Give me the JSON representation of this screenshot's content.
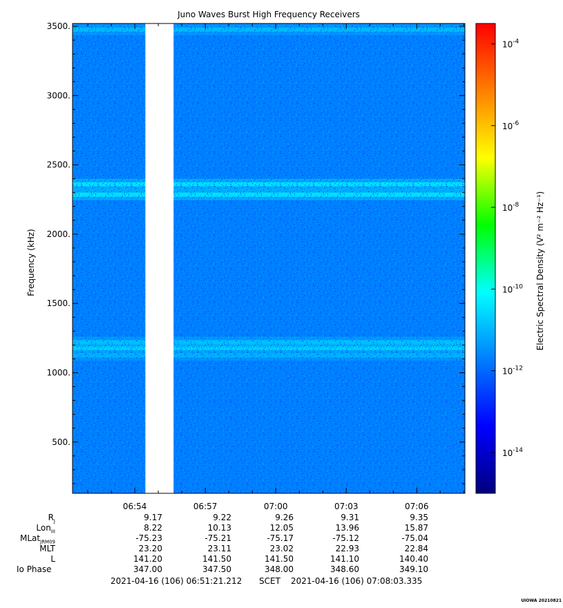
{
  "chart_data": {
    "type": "heatmap",
    "title": "Juno Waves Burst High Frequency Receivers",
    "ylabel": "Frequency (kHz)",
    "colorbar_label": "Electric Spectral Density (V² m⁻² Hz⁻¹)",
    "ylim": [
      130,
      3520
    ],
    "yticks": [
      500,
      1000,
      1500,
      2000,
      2500,
      3000,
      3500
    ],
    "ytick_labels": [
      "500.",
      "1000.",
      "1500.",
      "2000.",
      "2500.",
      "3000.",
      "3500."
    ],
    "xlim_minutes": [
      0,
      16.7
    ],
    "xtick_labels": [
      "06:54",
      "06:57",
      "07:00",
      "07:03",
      "07:06"
    ],
    "colorbar_range_log10": [
      -15,
      -3.5
    ],
    "colorbar_tick_exponents": [
      "-4",
      "-6",
      "-8",
      "-10",
      "-12",
      "-14"
    ],
    "colorbar_tick_values_log10": [
      -4,
      -6,
      -8,
      -10,
      -12,
      -14
    ],
    "background_log10": -11.7,
    "data_gap_minutes": [
      3.1,
      4.3
    ],
    "bands": [
      {
        "freq_khz": 3475,
        "log10": -10.9
      },
      {
        "freq_khz": 2360,
        "log10": -10.4
      },
      {
        "freq_khz": 2285,
        "log10": -10.4
      },
      {
        "freq_khz": 1220,
        "log10": -10.8
      },
      {
        "freq_khz": 1175,
        "log10": -10.6
      },
      {
        "freq_khz": 1125,
        "log10": -11.0
      }
    ],
    "colormap": [
      "#00007f",
      "#0000ff",
      "#007fff",
      "#00ffff",
      "#00ff00",
      "#ffff00",
      "#ff7f00",
      "#ff0000"
    ]
  },
  "ephemeris": {
    "rows": [
      {
        "label": "R",
        "sub": "J",
        "values": [
          "9.17",
          "9.22",
          "9.26",
          "9.31",
          "9.35"
        ]
      },
      {
        "label": "Lon",
        "sub": "III",
        "values": [
          "8.22",
          "10.13",
          "12.05",
          "13.96",
          "15.87"
        ]
      },
      {
        "label": "MLat",
        "sub": "JRM09",
        "values": [
          "-75.23",
          "-75.21",
          "-75.17",
          "-75.12",
          "-75.04"
        ]
      },
      {
        "label": "MLT",
        "sub": "",
        "values": [
          "23.20",
          "23.11",
          "23.02",
          "22.93",
          "22.84"
        ]
      },
      {
        "label": "L",
        "sub": "",
        "values": [
          "141.20",
          "141.50",
          "141.50",
          "141.10",
          "140.40"
        ]
      },
      {
        "label": "Io Phase",
        "sub": "",
        "values": [
          "347.00",
          "347.50",
          "348.00",
          "348.60",
          "349.10"
        ]
      }
    ]
  },
  "footer": {
    "start": "2021-04-16 (106) 06:51:21.212",
    "scet": "SCET",
    "end": "2021-04-16 (106) 07:08:03.335"
  },
  "stamp": "UIOWA 20210821"
}
